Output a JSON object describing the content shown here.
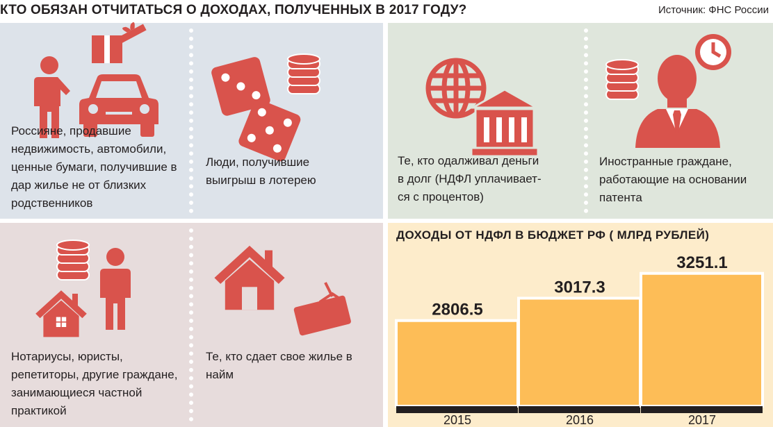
{
  "header": {
    "title": "КТО ОБЯЗАН ОТЧИТАТЬСЯ О ДОХОДАХ, ПОЛУЧЕННЫХ В 2017 ГОДУ?",
    "source": "Источник: ФНС России"
  },
  "colors": {
    "icon": "#d9534c",
    "panel_blue": "#dde3ea",
    "panel_green": "#dfe6dc",
    "panel_pink": "#e7dcdc",
    "panel_chart": "#fdeccb",
    "bar": "#fdbd57",
    "bar_base": "#231f20"
  },
  "categories": [
    {
      "icons": [
        "person-icon",
        "gift-icon",
        "car-icon"
      ],
      "text": [
        "Россияне, продавшие",
        "недвижимость, автомобили,",
        "ценные бумаги, получившие  в",
        "дар жилье не от близких",
        "родственников"
      ]
    },
    {
      "icons": [
        "dice-icon",
        "coins-icon"
      ],
      "text": [
        "Люди, получившие",
        "выигрыш в лотерею"
      ]
    },
    {
      "icons": [
        "globe-icon",
        "bank-icon"
      ],
      "text": [
        "Те, кто одалживал деньги",
        "в долг (НДФЛ уплачивает-",
        "ся с процентов)"
      ]
    },
    {
      "icons": [
        "coins-icon",
        "businessman-icon",
        "clock-icon"
      ],
      "text": [
        "Иностранные граждане,",
        "работающие на основании",
        "патента"
      ]
    },
    {
      "icons": [
        "coins-icon",
        "house-icon",
        "person-icon"
      ],
      "text": [
        "Нотариусы, юристы,",
        "репетиторы, другие граждане,",
        "занимающиеся частной",
        "практикой"
      ]
    },
    {
      "icons": [
        "house-icon",
        "sign-icon"
      ],
      "text": [
        "Те, кто сдает свое жилье в",
        "найм"
      ]
    }
  ],
  "chart_data": {
    "type": "bar",
    "title": "ДОХОДЫ ОТ НДФЛ В БЮДЖЕТ РФ ( МЛРД РУБЛЕЙ)",
    "categories": [
      "2015",
      "2016",
      "2017"
    ],
    "values": [
      2806.5,
      3017.3,
      3251.1
    ],
    "value_labels": [
      "2806.5",
      "3017.3",
      "3251.1"
    ],
    "ylim": [
      2000,
      3400
    ],
    "grid": false,
    "legend": "none"
  }
}
